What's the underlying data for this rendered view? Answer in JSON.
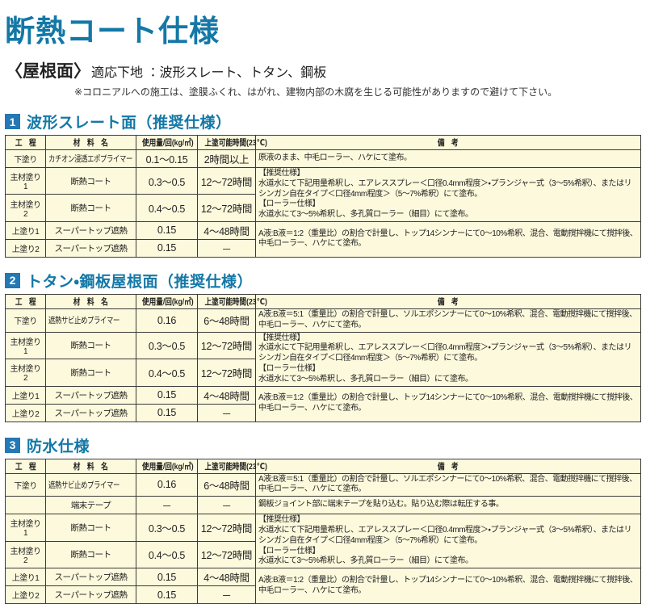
{
  "page": {
    "title": "断熱コート仕様",
    "subtitle_bracket": "〈屋根面〉",
    "subtitle_label": "適応下地 ：",
    "subtitle_value": "波形スレート、トタン、鋼板",
    "note": "※コロニアルへの施工は、塗膜ふくれ、はがれ、建物内部の木腐を生じる可能性がありますので避けて下さい。"
  },
  "colors": {
    "title_blue": "#1478A6",
    "section_badge_blue": "#2478B4",
    "table_cream": "#FCF9DC",
    "border": "#3b3b3b"
  },
  "table_headers": [
    "工　程",
    "材　料　名",
    "使用量/回(kg/㎡)",
    "上塗可能時間(23℃)",
    "備　考"
  ],
  "sections": [
    {
      "number": "1",
      "title": "波形スレート面（推奨仕様）",
      "rows": [
        {
          "process": "下塗り",
          "material": "カチオン浸透エポプライマー",
          "amount": "0.1～0.15",
          "interval": "2時間以上",
          "remark": "原液のまま、中毛ローラー、ハケにて塗布。",
          "remark_span": 1
        },
        {
          "process": "主材塗り1",
          "material": "断熱コート",
          "amount": "0.3～0.5",
          "interval": "12～72時間",
          "remark": "【推奨仕様】\n水道水にて下記用量希釈し、エアレススプレー＜口径0.4mm程度＞・プランジャー式（3～5%希釈）、またはリシンガン自在タイプ＜口径4mm程度＞（5～7%希釈）にて塗布。\n【ローラー仕様】\n水道水にて3～5%希釈し、多孔質ローラー（細目）にて塗布。",
          "remark_span": 2
        },
        {
          "process": "主材塗り2",
          "material": "断熱コート",
          "amount": "0.4～0.5",
          "interval": "12～72時間",
          "remark": null
        },
        {
          "process": "上塗り1",
          "material": "スーパートップ遮熱",
          "amount": "0.15",
          "interval": "4～48時間",
          "remark": "A液:B液＝1:2（重量比）の割合で計量し、トップ14シンナーにて0～10%希釈、混合、電動撹拌機にて撹拌後、中毛ローラー、ハケにて塗布。",
          "remark_span": 2
        },
        {
          "process": "上塗り2",
          "material": "スーパートップ遮熱",
          "amount": "0.15",
          "interval": "－",
          "remark": null
        }
      ]
    },
    {
      "number": "2",
      "title": "トタン・鋼板屋根面（推奨仕様）",
      "rows": [
        {
          "process": "下塗り",
          "material": "遮熱サビ止めプライマー",
          "amount": "0.16",
          "interval": "6～48時間",
          "remark": "A液:B液＝5:1（重量比）の割合で計量し、ソルエポシンナーにて0～10%希釈、混合、電動撹拌機にて撹拌後、中毛ローラー、ハケにて塗布。",
          "remark_span": 1
        },
        {
          "process": "主材塗り1",
          "material": "断熱コート",
          "amount": "0.3～0.5",
          "interval": "12～72時間",
          "remark": "【推奨仕様】\n水道水にて下記用量希釈し、エアレススプレー＜口径0.4mm程度＞・プランジャー式（3～5%希釈）、またはリシンガン自在タイプ＜口径4mm程度＞（5～7%希釈）にて塗布。\n【ローラー仕様】\n水道水にて3～5%希釈し、多孔質ローラー（細目）にて塗布。",
          "remark_span": 2
        },
        {
          "process": "主材塗り2",
          "material": "断熱コート",
          "amount": "0.4～0.5",
          "interval": "12～72時間",
          "remark": null
        },
        {
          "process": "上塗り1",
          "material": "スーパートップ遮熱",
          "amount": "0.15",
          "interval": "4～48時間",
          "remark": "A液:B液＝1:2（重量比）の割合で計量し、トップ14シンナーにて0～10%希釈、混合、電動撹拌機にて撹拌後、中毛ローラー、ハケにて塗布。",
          "remark_span": 2
        },
        {
          "process": "上塗り2",
          "material": "スーパートップ遮熱",
          "amount": "0.15",
          "interval": "－",
          "remark": null
        }
      ]
    },
    {
      "number": "3",
      "title": "防水仕様",
      "rows": [
        {
          "process": "下塗り",
          "material": "遮熱サビ止めプライマー",
          "amount": "0.16",
          "interval": "6～48時間",
          "remark": "A液:B液＝5:1（重量比）の割合で計量し、ソルエポシンナーにて0～10%希釈、混合、電動撹拌機にて撹拌後、中毛ローラー、ハケにて塗布。",
          "remark_span": 1
        },
        {
          "process": "",
          "material": "端末テープ",
          "amount": "－",
          "interval": "－",
          "remark": "鋼板ジョイント部に端末テープを貼り込む。貼り込む際は転圧する事。",
          "remark_span": 1
        },
        {
          "process": "主材塗り1",
          "material": "断熱コート",
          "amount": "0.3～0.5",
          "interval": "12～72時間",
          "remark": "【推奨仕様】\n水道水にて下記用量希釈し、エアレススプレー＜口径0.4mm程度＞・プランジャー式（3～5%希釈）、またはリシンガン自在タイプ＜口径4mm程度＞（5～7%希釈）にて塗布。\n【ローラー仕様】\n水道水にて3～5%希釈し、多孔質ローラー（細目）にて塗布。",
          "remark_span": 2
        },
        {
          "process": "主材塗り2",
          "material": "断熱コート",
          "amount": "0.4～0.5",
          "interval": "12～72時間",
          "remark": null
        },
        {
          "process": "上塗り1",
          "material": "スーパートップ遮熱",
          "amount": "0.15",
          "interval": "4～48時間",
          "remark": "A液:B液＝1:2（重量比）の割合で計量し、トップ14シンナーにて0～10%希釈、混合、電動撹拌機にて撹拌後、中毛ローラー、ハケにて塗布。",
          "remark_span": 2
        },
        {
          "process": "上塗り2",
          "material": "スーパートップ遮熱",
          "amount": "0.15",
          "interval": "－",
          "remark": null
        }
      ]
    }
  ]
}
